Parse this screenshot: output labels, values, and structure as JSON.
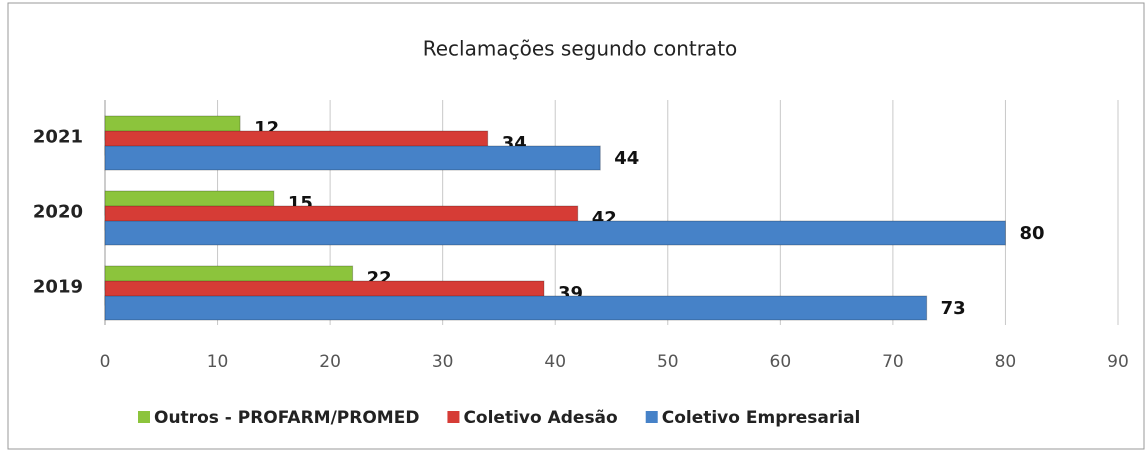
{
  "chart_data": {
    "type": "hbar",
    "title": "Reclamações segundo contrato",
    "categories": [
      "2021",
      "2020",
      "2019"
    ],
    "series": [
      {
        "name": "Outros - PROFARM/PROMED",
        "color": "#8cc43c",
        "values": [
          12,
          15,
          22
        ]
      },
      {
        "name": "Coletivo Adesão",
        "color": "#d63c36",
        "values": [
          34,
          42,
          39
        ]
      },
      {
        "name": "Coletivo Empresarial",
        "color": "#4682c8",
        "values": [
          44,
          80,
          73
        ]
      }
    ],
    "xlim": [
      0,
      90
    ],
    "xticks": [
      0,
      10,
      20,
      30,
      40,
      50,
      60,
      70,
      80,
      90
    ],
    "grid": true,
    "legend": "bottom"
  }
}
